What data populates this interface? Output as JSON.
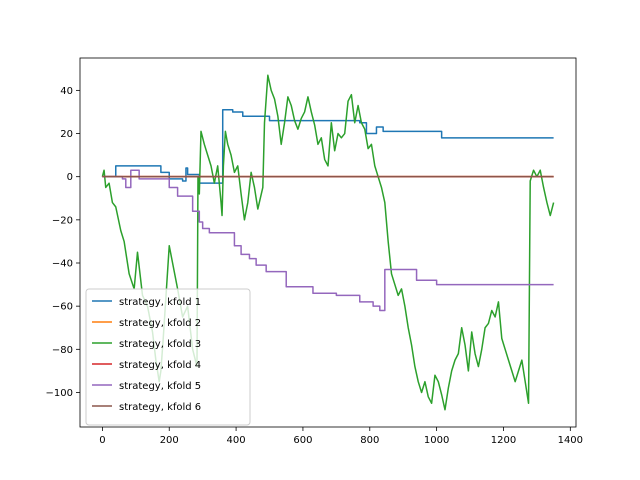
{
  "chart_data": {
    "type": "line",
    "title": "",
    "xlabel": "",
    "ylabel": "",
    "xlim": [
      -67,
      1417
    ],
    "ylim": [
      -116,
      55
    ],
    "xticks": [
      0,
      200,
      400,
      600,
      800,
      1000,
      1200,
      1400
    ],
    "yticks": [
      -100,
      -80,
      -60,
      -40,
      -20,
      0,
      20,
      40
    ],
    "grid": false,
    "legend_position": "lower-left",
    "series": [
      {
        "name": "strategy, kfold 1",
        "color": "#1f77b4",
        "points": [
          [
            0,
            0
          ],
          [
            40,
            0
          ],
          [
            40,
            5
          ],
          [
            175,
            5
          ],
          [
            175,
            2
          ],
          [
            200,
            2
          ],
          [
            200,
            -1
          ],
          [
            240,
            -1
          ],
          [
            240,
            -2
          ],
          [
            250,
            -2
          ],
          [
            250,
            4
          ],
          [
            255,
            4
          ],
          [
            255,
            1
          ],
          [
            290,
            1
          ],
          [
            290,
            -3
          ],
          [
            360,
            -3
          ],
          [
            360,
            31
          ],
          [
            390,
            31
          ],
          [
            390,
            30
          ],
          [
            420,
            30
          ],
          [
            420,
            28
          ],
          [
            500,
            28
          ],
          [
            500,
            26
          ],
          [
            770,
            26
          ],
          [
            770,
            25
          ],
          [
            790,
            25
          ],
          [
            790,
            20
          ],
          [
            820,
            20
          ],
          [
            820,
            23
          ],
          [
            840,
            23
          ],
          [
            840,
            21
          ],
          [
            1015,
            21
          ],
          [
            1015,
            18
          ],
          [
            1350,
            18
          ]
        ]
      },
      {
        "name": "strategy, kfold 2",
        "color": "#ff7f0e",
        "points": [
          [
            0,
            0
          ],
          [
            1350,
            0
          ]
        ]
      },
      {
        "name": "strategy, kfold 3",
        "color": "#2ca02c",
        "points": [
          [
            0,
            0
          ],
          [
            5,
            3
          ],
          [
            10,
            -5
          ],
          [
            20,
            -3
          ],
          [
            30,
            -12
          ],
          [
            40,
            -14
          ],
          [
            55,
            -25
          ],
          [
            65,
            -30
          ],
          [
            80,
            -45
          ],
          [
            95,
            -52
          ],
          [
            105,
            -35
          ],
          [
            120,
            -55
          ],
          [
            135,
            -60
          ],
          [
            150,
            -72
          ],
          [
            160,
            -85
          ],
          [
            170,
            -95
          ],
          [
            175,
            -90
          ],
          [
            182,
            -75
          ],
          [
            200,
            -32
          ],
          [
            210,
            -40
          ],
          [
            225,
            -52
          ],
          [
            240,
            -65
          ],
          [
            255,
            -60
          ],
          [
            270,
            -80
          ],
          [
            283,
            -88
          ],
          [
            286,
            0
          ],
          [
            290,
            -8
          ],
          [
            295,
            21
          ],
          [
            305,
            15
          ],
          [
            315,
            10
          ],
          [
            325,
            5
          ],
          [
            335,
            -3
          ],
          [
            345,
            5
          ],
          [
            355,
            -12
          ],
          [
            358,
            -18
          ],
          [
            362,
            5
          ],
          [
            368,
            21
          ],
          [
            375,
            15
          ],
          [
            385,
            10
          ],
          [
            395,
            2
          ],
          [
            405,
            5
          ],
          [
            415,
            -8
          ],
          [
            425,
            -20
          ],
          [
            435,
            -12
          ],
          [
            445,
            2
          ],
          [
            455,
            -5
          ],
          [
            465,
            -15
          ],
          [
            480,
            -5
          ],
          [
            485,
            25
          ],
          [
            495,
            47
          ],
          [
            505,
            40
          ],
          [
            515,
            36
          ],
          [
            525,
            28
          ],
          [
            535,
            15
          ],
          [
            545,
            25
          ],
          [
            555,
            37
          ],
          [
            565,
            33
          ],
          [
            575,
            26
          ],
          [
            585,
            22
          ],
          [
            595,
            27
          ],
          [
            605,
            30
          ],
          [
            615,
            37
          ],
          [
            625,
            30
          ],
          [
            635,
            24
          ],
          [
            645,
            15
          ],
          [
            655,
            18
          ],
          [
            665,
            8
          ],
          [
            675,
            5
          ],
          [
            685,
            25
          ],
          [
            695,
            12
          ],
          [
            705,
            20
          ],
          [
            715,
            18
          ],
          [
            725,
            20
          ],
          [
            735,
            35
          ],
          [
            745,
            38
          ],
          [
            755,
            25
          ],
          [
            765,
            33
          ],
          [
            775,
            25
          ],
          [
            785,
            22
          ],
          [
            795,
            13
          ],
          [
            805,
            15
          ],
          [
            815,
            5
          ],
          [
            825,
            0
          ],
          [
            835,
            -5
          ],
          [
            845,
            -12
          ],
          [
            855,
            -30
          ],
          [
            865,
            -45
          ],
          [
            875,
            -50
          ],
          [
            885,
            -55
          ],
          [
            895,
            -52
          ],
          [
            905,
            -60
          ],
          [
            915,
            -70
          ],
          [
            925,
            -78
          ],
          [
            935,
            -88
          ],
          [
            945,
            -95
          ],
          [
            955,
            -100
          ],
          [
            965,
            -95
          ],
          [
            975,
            -102
          ],
          [
            985,
            -105
          ],
          [
            995,
            -92
          ],
          [
            1005,
            -95
          ],
          [
            1015,
            -101
          ],
          [
            1025,
            -108
          ],
          [
            1035,
            -98
          ],
          [
            1045,
            -90
          ],
          [
            1055,
            -85
          ],
          [
            1065,
            -82
          ],
          [
            1075,
            -70
          ],
          [
            1085,
            -78
          ],
          [
            1095,
            -90
          ],
          [
            1105,
            -72
          ],
          [
            1115,
            -82
          ],
          [
            1125,
            -88
          ],
          [
            1135,
            -80
          ],
          [
            1145,
            -70
          ],
          [
            1155,
            -68
          ],
          [
            1165,
            -62
          ],
          [
            1175,
            -65
          ],
          [
            1185,
            -58
          ],
          [
            1195,
            -75
          ],
          [
            1205,
            -80
          ],
          [
            1215,
            -85
          ],
          [
            1225,
            -90
          ],
          [
            1235,
            -95
          ],
          [
            1245,
            -90
          ],
          [
            1255,
            -85
          ],
          [
            1265,
            -95
          ],
          [
            1275,
            -105
          ],
          [
            1280,
            -2
          ],
          [
            1290,
            3
          ],
          [
            1300,
            0
          ],
          [
            1310,
            3
          ],
          [
            1320,
            -5
          ],
          [
            1330,
            -12
          ],
          [
            1340,
            -18
          ],
          [
            1345,
            -15
          ],
          [
            1350,
            -12
          ]
        ]
      },
      {
        "name": "strategy, kfold 4",
        "color": "#d62728",
        "points": [
          [
            0,
            0
          ],
          [
            1350,
            0
          ]
        ]
      },
      {
        "name": "strategy, kfold 5",
        "color": "#9467bd",
        "points": [
          [
            0,
            0
          ],
          [
            60,
            0
          ],
          [
            60,
            -1
          ],
          [
            70,
            -1
          ],
          [
            70,
            -5
          ],
          [
            85,
            -5
          ],
          [
            85,
            3
          ],
          [
            110,
            3
          ],
          [
            110,
            -1
          ],
          [
            200,
            -1
          ],
          [
            200,
            -5
          ],
          [
            225,
            -5
          ],
          [
            225,
            -9
          ],
          [
            270,
            -9
          ],
          [
            270,
            -16
          ],
          [
            290,
            -16
          ],
          [
            290,
            -21
          ],
          [
            300,
            -21
          ],
          [
            300,
            -24
          ],
          [
            320,
            -24
          ],
          [
            320,
            -26
          ],
          [
            395,
            -26
          ],
          [
            395,
            -32
          ],
          [
            415,
            -32
          ],
          [
            415,
            -36
          ],
          [
            440,
            -36
          ],
          [
            440,
            -38
          ],
          [
            460,
            -38
          ],
          [
            460,
            -41
          ],
          [
            490,
            -41
          ],
          [
            490,
            -44
          ],
          [
            550,
            -44
          ],
          [
            550,
            -51
          ],
          [
            630,
            -51
          ],
          [
            630,
            -54
          ],
          [
            700,
            -54
          ],
          [
            700,
            -55
          ],
          [
            770,
            -55
          ],
          [
            770,
            -58
          ],
          [
            810,
            -58
          ],
          [
            810,
            -60
          ],
          [
            830,
            -60
          ],
          [
            830,
            -62
          ],
          [
            845,
            -62
          ],
          [
            845,
            -43
          ],
          [
            940,
            -43
          ],
          [
            940,
            -48
          ],
          [
            1000,
            -48
          ],
          [
            1000,
            -50
          ],
          [
            1350,
            -50
          ]
        ]
      },
      {
        "name": "strategy, kfold 6",
        "color": "#8c564b",
        "points": [
          [
            0,
            0
          ],
          [
            1350,
            0
          ]
        ]
      }
    ]
  }
}
